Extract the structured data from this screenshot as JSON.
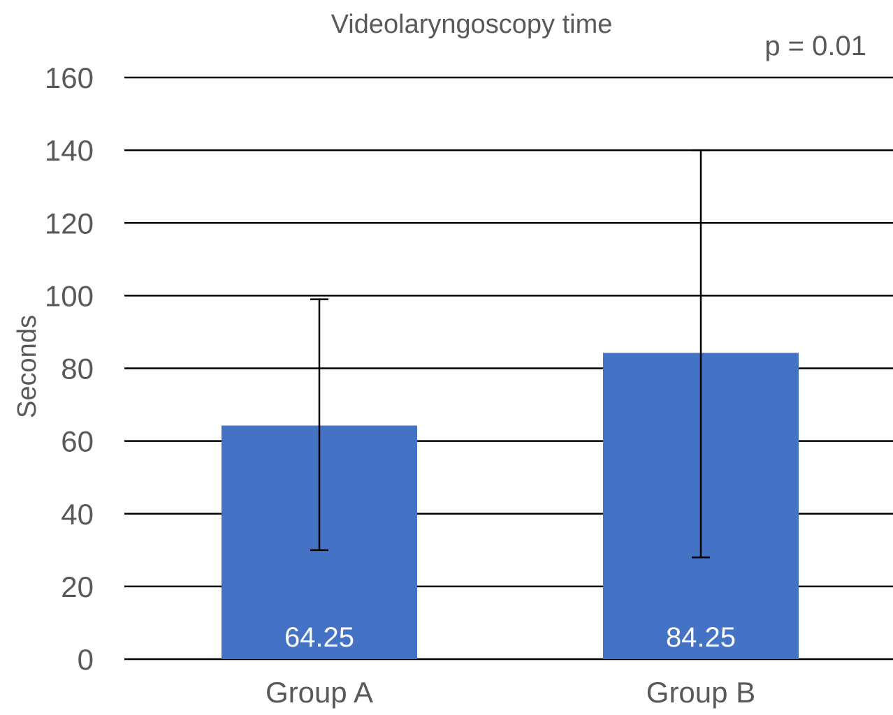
{
  "chart_data": {
    "type": "bar",
    "title": "Videolaryngoscopy time",
    "annotation": "p = 0.01",
    "ylabel": "Seconds",
    "xlabel": "",
    "categories": [
      "Group A",
      "Group B"
    ],
    "values": [
      64.25,
      84.25
    ],
    "data_labels": [
      "64.25",
      "84.25"
    ],
    "error_bars": [
      {
        "low": 30,
        "high": 99
      },
      {
        "low": 28,
        "high": 140
      }
    ],
    "ylim": [
      0,
      160
    ],
    "yticks": [
      0,
      20,
      40,
      60,
      80,
      100,
      120,
      140,
      160
    ],
    "grid": "horizontal",
    "legend": "none",
    "colors": {
      "bar": "#4472C4",
      "gridline": "#000000",
      "text": "#595959",
      "data_label": "#FFFFFF"
    }
  }
}
